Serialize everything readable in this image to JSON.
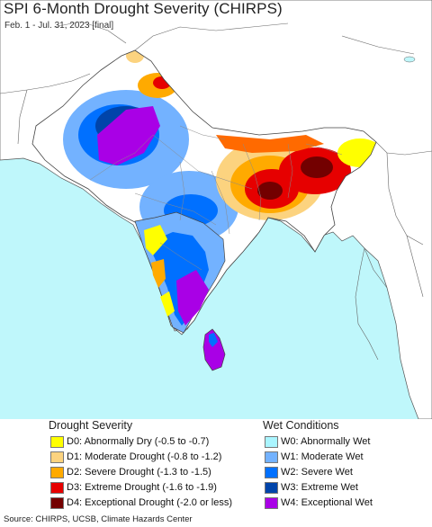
{
  "header": {
    "title": "SPI 6-Month Drought Severity (CHIRPS)",
    "subtitle": "Feb. 1 - Jul. 31, 2023 [final]"
  },
  "legend": {
    "drought": {
      "heading": "Drought Severity",
      "items": [
        {
          "label": "D0: Abnormally Dry (-0.5 to -0.7)",
          "color": "#ffff00"
        },
        {
          "label": "D1: Moderate Drought (-0.8 to -1.2)",
          "color": "#fcd37f"
        },
        {
          "label": "D2: Severe Drought (-1.3 to -1.5)",
          "color": "#ffaa00"
        },
        {
          "label": "D3: Extreme Drought (-1.6 to -1.9)",
          "color": "#e60000"
        },
        {
          "label": "D4: Exceptional Drought (-2.0 or less)",
          "color": "#730000"
        }
      ]
    },
    "wet": {
      "heading": "Wet Conditions",
      "items": [
        {
          "label": "W0: Abnormally Wet",
          "color": "#aaf5ff"
        },
        {
          "label": "W1: Moderate Wet",
          "color": "#73b2ff"
        },
        {
          "label": "W2: Severe Wet",
          "color": "#0070ff"
        },
        {
          "label": "W3: Extreme Wet",
          "color": "#0044aa"
        },
        {
          "label": "W4: Exceptional Wet",
          "color": "#a900e6"
        }
      ]
    }
  },
  "footer": {
    "source": "Source: CHIRPS, UCSB, Climate Hazards Center"
  }
}
